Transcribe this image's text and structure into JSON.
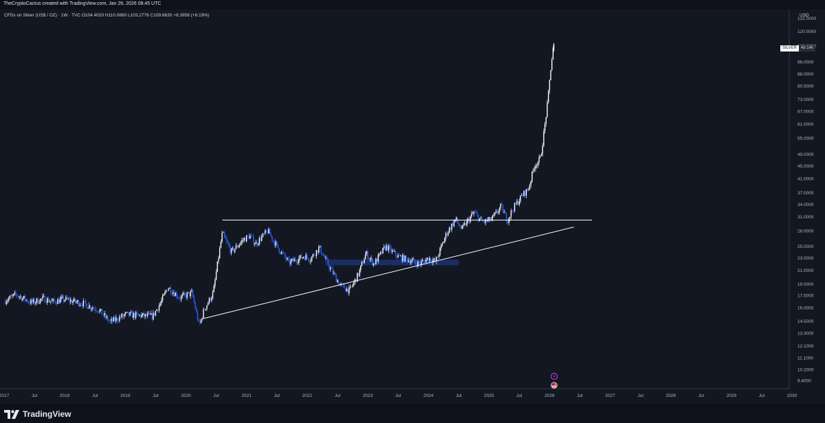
{
  "attribution": "TheCryptoCactus created with TradingView.com, Jan 26, 2026 08:45 UTC",
  "symbol": {
    "line": "CFDs on Silver (US$ / OZ) · 1W · TVC  O104.4020  H110.0660  L103.2776  C109.6630  +6.3958 (+6.19%)"
  },
  "price_tag": {
    "symbol": "SILVER",
    "countdown": "4d 14h"
  },
  "brand": {
    "name": "TradingView"
  },
  "colors": {
    "background": "#131722",
    "candle_up": "#ffffff",
    "candle_down": "#2962ff",
    "line": "#ffffff",
    "zone": "#1e3a8a"
  },
  "chart_data": {
    "type": "candlestick",
    "y_scale": "log",
    "currency": "USD",
    "ylim": [
      9.0,
      135.0
    ],
    "y_ticks": [
      "132.0000",
      "120.0000",
      "108.0000",
      "96.0000",
      "88.0000",
      "80.5000",
      "73.0000",
      "67.0000",
      "61.0000",
      "55.0000",
      "49.0000",
      "45.0000",
      "41.0000",
      "37.0000",
      "34.0000",
      "31.0000",
      "28.0000",
      "25.0000",
      "23.0000",
      "21.0000",
      "19.0000",
      "17.5000",
      "16.0000",
      "14.5000",
      "13.3000",
      "12.1000",
      "11.1000",
      "10.2000",
      "9.4000"
    ],
    "x_ticks": [
      "2017",
      "Jul",
      "2018",
      "Jul",
      "2019",
      "Jul",
      "2020",
      "Jul",
      "2021",
      "Jul",
      "2022",
      "Jul",
      "2023",
      "Jul",
      "2024",
      "Jul",
      "2025",
      "Jul",
      "2026",
      "Jul",
      "2027",
      "Jul",
      "2028",
      "Jul",
      "2029",
      "Jul",
      "2030"
    ],
    "x_range": [
      2017.0,
      2030.0
    ],
    "trend": [
      [
        2017.0,
        16.8
      ],
      [
        2017.2,
        17.6
      ],
      [
        2017.45,
        16.6
      ],
      [
        2017.65,
        17.1
      ],
      [
        2017.8,
        16.7
      ],
      [
        2018.0,
        17.0
      ],
      [
        2018.3,
        16.5
      ],
      [
        2018.55,
        15.8
      ],
      [
        2018.75,
        14.4
      ],
      [
        2019.0,
        15.2
      ],
      [
        2019.25,
        15.1
      ],
      [
        2019.45,
        15.0
      ],
      [
        2019.6,
        16.8
      ],
      [
        2019.7,
        18.6
      ],
      [
        2019.9,
        17.2
      ],
      [
        2020.1,
        17.8
      ],
      [
        2020.22,
        14.0
      ],
      [
        2020.3,
        15.8
      ],
      [
        2020.45,
        17.8
      ],
      [
        2020.55,
        24.0
      ],
      [
        2020.6,
        27.5
      ],
      [
        2020.75,
        24.0
      ],
      [
        2020.95,
        26.3
      ],
      [
        2021.05,
        27.0
      ],
      [
        2021.15,
        25.5
      ],
      [
        2021.35,
        28.0
      ],
      [
        2021.5,
        25.0
      ],
      [
        2021.7,
        22.2
      ],
      [
        2021.95,
        23.3
      ],
      [
        2022.05,
        22.8
      ],
      [
        2022.2,
        24.8
      ],
      [
        2022.35,
        21.8
      ],
      [
        2022.55,
        18.8
      ],
      [
        2022.7,
        18.1
      ],
      [
        2022.85,
        20.5
      ],
      [
        2022.97,
        23.8
      ],
      [
        2023.1,
        22.0
      ],
      [
        2023.3,
        25.0
      ],
      [
        2023.5,
        23.2
      ],
      [
        2023.7,
        22.6
      ],
      [
        2023.85,
        22.0
      ],
      [
        2024.0,
        23.0
      ],
      [
        2024.12,
        22.4
      ],
      [
        2024.3,
        27.5
      ],
      [
        2024.45,
        30.5
      ],
      [
        2024.55,
        28.3
      ],
      [
        2024.75,
        32.0
      ],
      [
        2024.9,
        29.8
      ],
      [
        2025.05,
        30.5
      ],
      [
        2025.2,
        33.5
      ],
      [
        2025.3,
        30.2
      ],
      [
        2025.4,
        33.0
      ],
      [
        2025.55,
        36.3
      ],
      [
        2025.65,
        38.0
      ],
      [
        2025.75,
        45.0
      ],
      [
        2025.85,
        47.5
      ],
      [
        2025.92,
        60.0
      ],
      [
        2025.97,
        72.0
      ],
      [
        2026.02,
        92.0
      ],
      [
        2026.07,
        109.66
      ]
    ],
    "last_candle": {
      "open": 104.402,
      "high": 110.066,
      "low": 103.2776,
      "close": 109.663
    },
    "lines": [
      {
        "name": "resistance",
        "from": [
          2020.6,
          30.3
        ],
        "to": [
          2026.7,
          30.3
        ]
      },
      {
        "name": "rising-support",
        "from": [
          2020.3,
          14.8
        ],
        "to": [
          2026.4,
          28.8
        ]
      }
    ],
    "zone": {
      "x": [
        2022.3,
        2024.5
      ],
      "y": [
        21.8,
        22.7
      ]
    }
  }
}
